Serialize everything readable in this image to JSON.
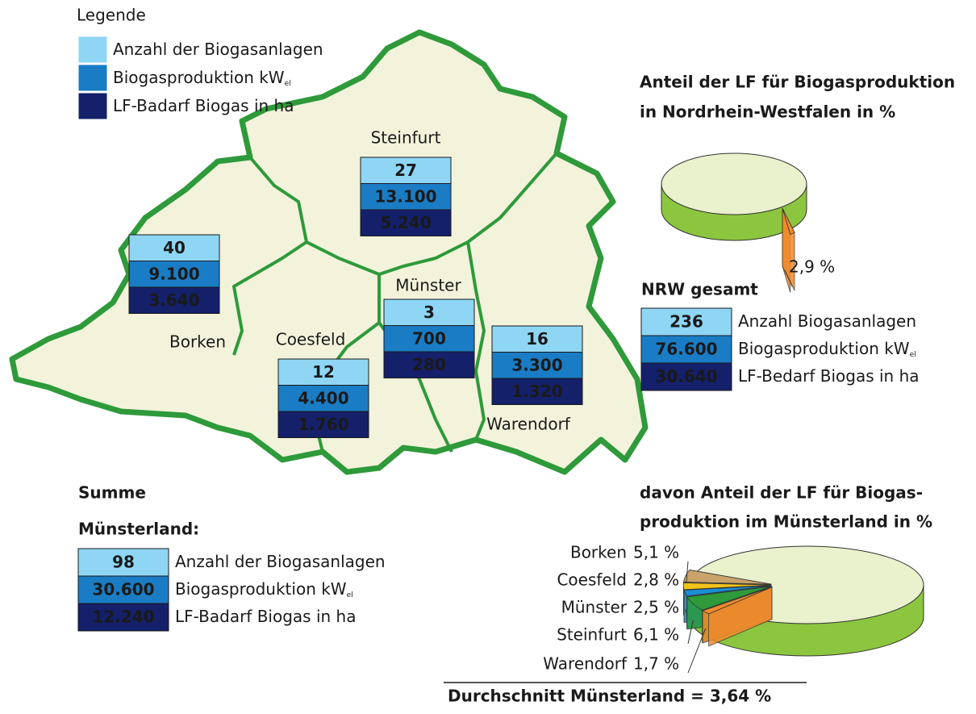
{
  "legend": {
    "title": "Legende",
    "items": [
      {
        "label": "Anzahl der Biogasanlagen",
        "color": "#8fd6f5"
      },
      {
        "label": "Biogasproduktion kW",
        "sub": "el",
        "color": "#1a7cc4"
      },
      {
        "label": "LF-Badarf Biogas in ha",
        "color": "#14206a"
      }
    ]
  },
  "districts": [
    {
      "name": "Steinfurt",
      "values": [
        "27",
        "13.100",
        "5.240"
      ]
    },
    {
      "name": "Borken",
      "values": [
        "40",
        "9.100",
        "3.640"
      ]
    },
    {
      "name": "Münster",
      "values": [
        "3",
        "700",
        "280"
      ]
    },
    {
      "name": "Coesfeld",
      "values": [
        "12",
        "4.400",
        "1.760"
      ]
    },
    {
      "name": "Warendorf",
      "values": [
        "16",
        "3.300",
        "1.320"
      ]
    }
  ],
  "nrw_pie": {
    "title": [
      "Anteil der LF für Biogasproduktion",
      "in Nordrhein-Westfalen in %"
    ],
    "value": 2.9,
    "value_label": "2,9 %",
    "color": "#f08a2c",
    "base_color": "#e9f1cd",
    "side_color": "#8cc63f"
  },
  "nrw_total": {
    "title": "NRW gesamt",
    "values": [
      "236",
      "76.600",
      "30.640"
    ],
    "labels": [
      {
        "label": "Anzahl Biogasanlagen"
      },
      {
        "label": "Biogasproduktion kW",
        "sub": "el"
      },
      {
        "label": "LF-Bedarf Biogas in ha"
      }
    ]
  },
  "sum_total": {
    "title": [
      "Summe",
      "Münsterland:"
    ],
    "values": [
      "98",
      "30.600",
      "12.240"
    ],
    "labels": [
      {
        "label": "Anzahl der Biogasanlagen"
      },
      {
        "label": "Biogasproduktion kW",
        "sub": "el"
      },
      {
        "label": "LF-Badarf Biogas in ha"
      }
    ]
  },
  "ml_pie": {
    "title": [
      "davon Anteil der LF für Biogas-",
      "produktion im Münsterland in %"
    ],
    "slices": [
      {
        "name": "Borken",
        "value": 5.1,
        "value_label": "5,1 %",
        "color": "#c9a36a"
      },
      {
        "name": "Coesfeld",
        "value": 2.8,
        "value_label": "2,8 %",
        "color": "#f2c318"
      },
      {
        "name": "Münster",
        "value": 2.5,
        "value_label": "2,5 %",
        "color": "#1a8fd6"
      },
      {
        "name": "Steinfurt",
        "value": 6.1,
        "value_label": "6,1 %",
        "color": "#2e9a3a"
      },
      {
        "name": "Warendorf",
        "value": 1.7,
        "value_label": "1,7 %",
        "color": "#f08a2c"
      }
    ],
    "base_color": "#e9f1cd",
    "side_color": "#8cc63f",
    "footer": "Durchschnitt Münsterland = 3,64 %"
  }
}
